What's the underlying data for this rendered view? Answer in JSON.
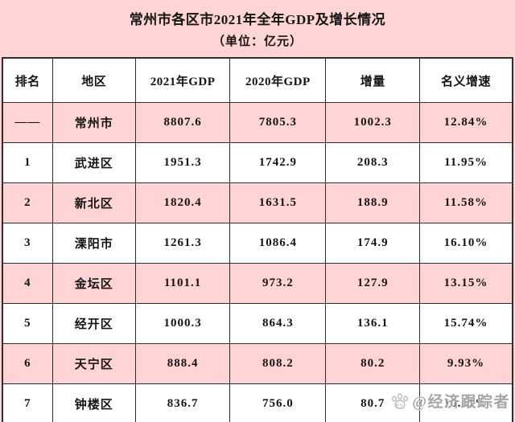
{
  "colors": {
    "background_pink": "#ffd4d4",
    "row_pink": "#ffd4d4",
    "row_white": "#ffffff",
    "border": "#2e2e2e",
    "text": "#141414",
    "watermark_gray": "#949494"
  },
  "title": {
    "line1": "常州市各区市2021年全年GDP及增长情况",
    "line2": "（单位：亿元）"
  },
  "watermark": {
    "icon": "baidu-paw-icon",
    "text": "@经济跟踪者"
  },
  "chart_data": {
    "type": "table",
    "title": "常州市各区市2021年全年GDP及增长情况",
    "subtitle": "（单位：亿元）",
    "columns": [
      "排名",
      "地区",
      "2021年GDP",
      "2020年GDP",
      "增量",
      "名义增速"
    ],
    "rows": [
      [
        "——",
        "常州市",
        "8807.6",
        "7805.3",
        "1002.3",
        "12.84%"
      ],
      [
        "1",
        "武进区",
        "1951.3",
        "1742.9",
        "208.3",
        "11.95%"
      ],
      [
        "2",
        "新北区",
        "1820.4",
        "1631.5",
        "188.9",
        "11.58%"
      ],
      [
        "3",
        "溧阳市",
        "1261.3",
        "1086.4",
        "174.9",
        "16.10%"
      ],
      [
        "4",
        "金坛区",
        "1101.1",
        "973.2",
        "127.9",
        "13.15%"
      ],
      [
        "5",
        "经开区",
        "1000.3",
        "864.3",
        "136.1",
        "15.74%"
      ],
      [
        "6",
        "天宁区",
        "888.4",
        "808.2",
        "80.2",
        "9.93%"
      ],
      [
        "7",
        "钟楼区",
        "836.7",
        "756.0",
        "80.7",
        "10.67%"
      ]
    ],
    "row_striping": [
      "pink",
      "white",
      "pink",
      "white",
      "pink",
      "white",
      "pink",
      "white"
    ],
    "layout": {
      "grid": "on",
      "header_background": "#ffffff"
    }
  }
}
